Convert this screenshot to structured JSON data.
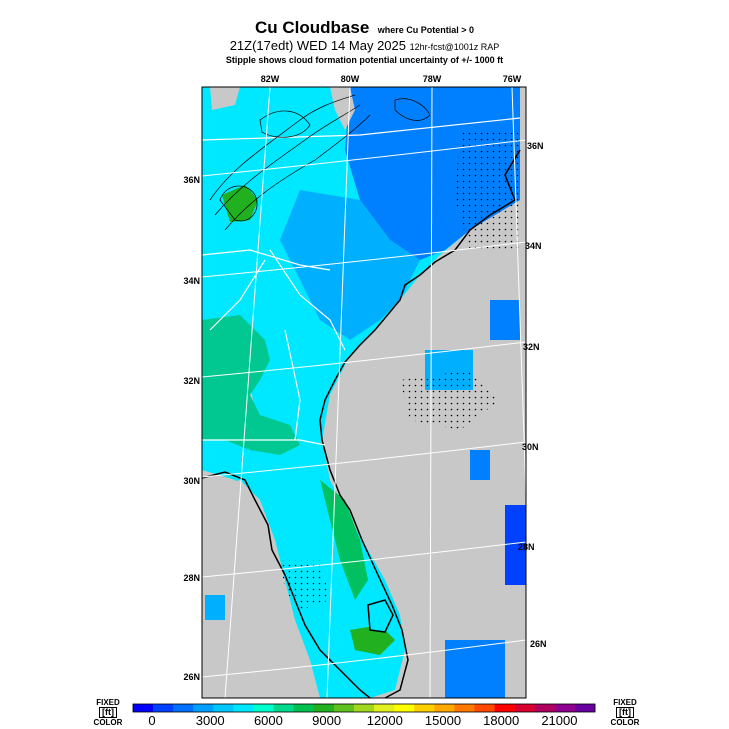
{
  "header": {
    "title": "Cu Cloudbase",
    "title_note": "where Cu Potential > 0",
    "valid_time": "21Z(17edt) WED 14 May 2025",
    "run_info": "12hr-fcst@1001z RAP",
    "stipple_note": "Stipple shows cloud formation potential uncertainty of +/- 1000 ft"
  },
  "map": {
    "land_gray": "#c8c8c8",
    "lon_labels": [
      "82W",
      "80W",
      "78W",
      "76W"
    ],
    "lat_labels_left": [
      "36N",
      "34N",
      "32N",
      "30N",
      "28N",
      "26N"
    ],
    "lat_labels_right": [
      "36N",
      "34N",
      "32N",
      "30N",
      "28N",
      "26N"
    ]
  },
  "colorbar": {
    "colors": [
      "#0000ff",
      "#0040ff",
      "#0070ff",
      "#00a0ff",
      "#00c8ff",
      "#00e8ff",
      "#00ffcc",
      "#00d88c",
      "#00c050",
      "#20b020",
      "#60c020",
      "#a0d820",
      "#e0f020",
      "#ffff00",
      "#ffd000",
      "#ffa800",
      "#ff7800",
      "#ff4800",
      "#ff0000",
      "#d80030",
      "#b00060",
      "#900090",
      "#6800a0"
    ],
    "tick_labels": [
      "0",
      "3000",
      "6000",
      "9000",
      "12000",
      "15000",
      "18000",
      "21000"
    ],
    "left_top": "FIXED",
    "left_unit": "[ft]",
    "left_bottom": "COLOR",
    "right_top": "FIXED",
    "right_unit": "[ft]",
    "right_bottom": "COLOR"
  }
}
